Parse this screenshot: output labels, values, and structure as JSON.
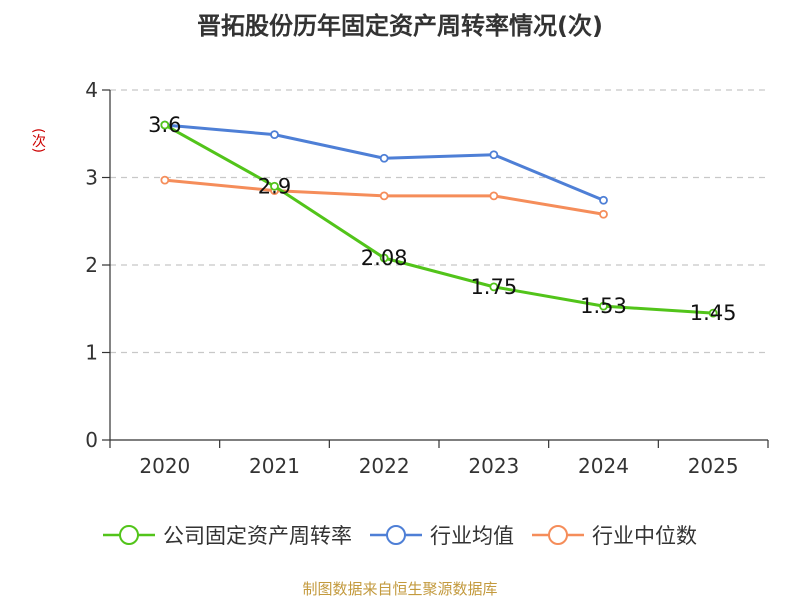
{
  "chart_data": {
    "type": "line",
    "title": "晋拓股份历年固定资产周转率情况(次)",
    "xlabel": "",
    "ylabel": "(次)",
    "categories": [
      "2020",
      "2021",
      "2022",
      "2023",
      "2024",
      "2025"
    ],
    "ylim": [
      0,
      4
    ],
    "yticks": [
      0,
      1,
      2,
      3,
      4
    ],
    "grid": true,
    "legend_position": "bottom",
    "series": [
      {
        "name": "公司固定资产周转率",
        "color": "#52c41a",
        "values": [
          3.6,
          2.9,
          2.08,
          1.75,
          1.53,
          1.45
        ],
        "labels": [
          "3.6",
          "2.9",
          "2.08",
          "1.75",
          "1.53",
          "1.45"
        ]
      },
      {
        "name": "行业均值",
        "color": "#4e7fd6",
        "values": [
          3.6,
          3.49,
          3.22,
          3.26,
          2.74,
          null
        ]
      },
      {
        "name": "行业中位数",
        "color": "#f58d5a",
        "values": [
          2.97,
          2.85,
          2.79,
          2.79,
          2.58,
          null
        ]
      }
    ]
  },
  "source": "制图数据来自恒生聚源数据库"
}
